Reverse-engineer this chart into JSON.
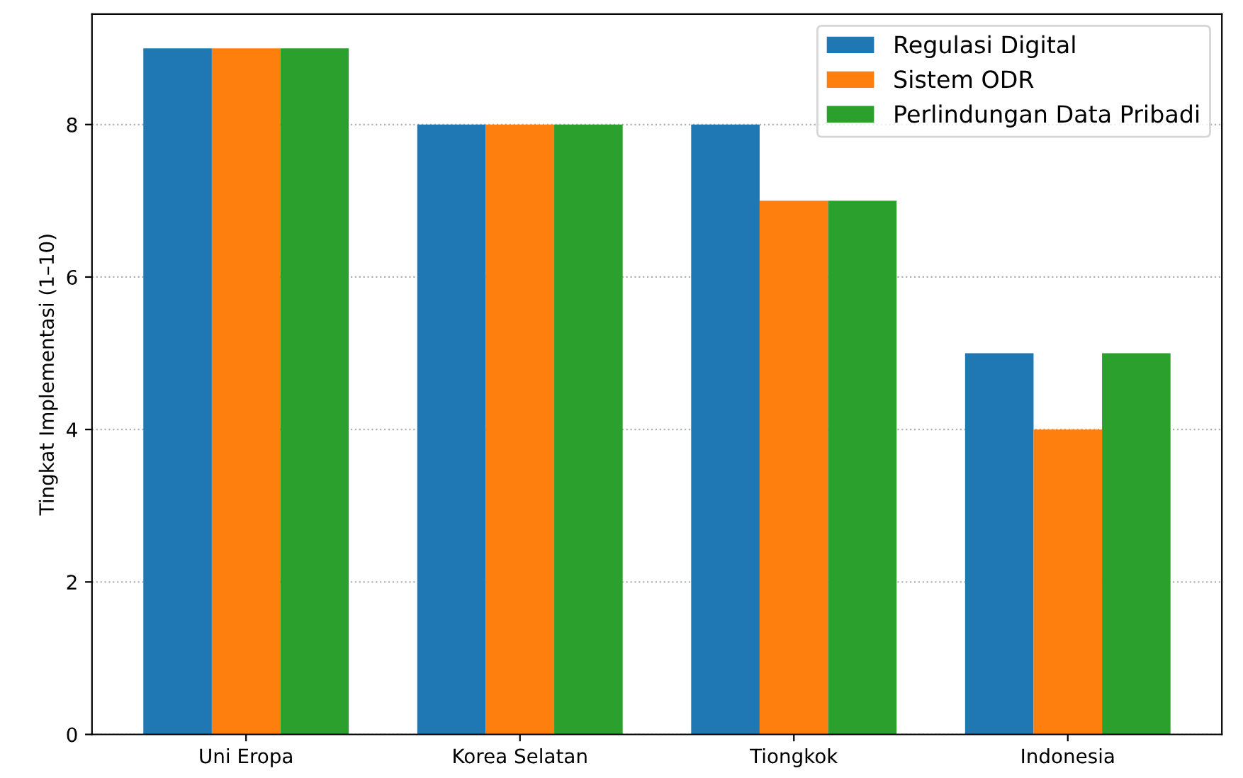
{
  "chart_data": {
    "type": "bar",
    "ylabel": "Tingkat Implementasi (1–10)",
    "categories": [
      "Uni Eropa",
      "Korea Selatan",
      "Tiongkok",
      "Indonesia"
    ],
    "series": [
      {
        "name": "Regulasi Digital",
        "color": "#1f77b4",
        "values": [
          9,
          8,
          8,
          5
        ]
      },
      {
        "name": "Sistem ODR",
        "color": "#ff7f0e",
        "values": [
          9,
          8,
          7,
          4
        ]
      },
      {
        "name": "Perlindungan Data Pribadi",
        "color": "#2ca02c",
        "values": [
          9,
          8,
          7,
          5
        ]
      }
    ],
    "ylim": [
      0,
      9.45
    ],
    "yticks": [
      0,
      2,
      4,
      6,
      8
    ],
    "grid": "y",
    "legend": "top right"
  }
}
